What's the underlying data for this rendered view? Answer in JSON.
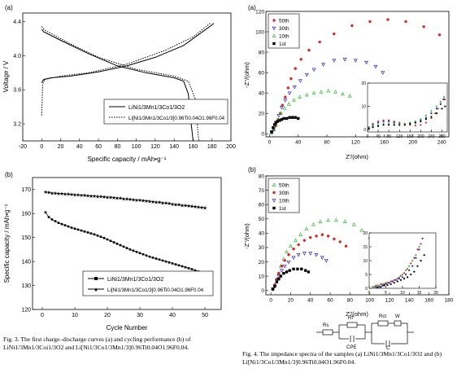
{
  "fig3": {
    "caption": "Fig. 3.  The first charge–discharge curves (a) and cycling performance (b) of LiNi1/3Mn1/3Coi1/3O2 and Li[Ni1/3Co1/3Mn1/3]0.96Ti0.04O1.96F0.04."
  },
  "fig4": {
    "caption": "Fig. 4.  The impedance spectra of the samples (a) LiNi1/3Mn1/3Co1/3O2 and (b) Li[Ni1/3Co1/3Mn1/3]0.96Ti0.04O1.96F0.04.",
    "circuit": {
      "labels": [
        "Rs",
        "Rf",
        "Rct",
        "W",
        "CPE",
        "C"
      ]
    }
  },
  "chart_data": [
    {
      "panel": "(a)",
      "type": "line",
      "xlabel": "Specific capacity / mAh•g⁻¹",
      "ylabel": "Voltage / V",
      "xlim": [
        -20,
        200
      ],
      "ylim": [
        3.0,
        4.5
      ],
      "xticks": [
        "-20",
        "0",
        "20",
        "40",
        "60",
        "80",
        "100",
        "120",
        "140",
        "160",
        "180",
        "200"
      ],
      "yticks": [
        "3.2",
        "3.6",
        "4.0",
        "4.4"
      ],
      "legend_placement": "bottom-right",
      "series": [
        {
          "name": "LiNi1/3Mn1/3Co1/3O2",
          "style": "solid",
          "charge": [
            [
              0,
              3.68
            ],
            [
              2,
              3.72
            ],
            [
              10,
              3.74
            ],
            [
              30,
              3.76
            ],
            [
              60,
              3.81
            ],
            [
              90,
              3.88
            ],
            [
              120,
              3.98
            ],
            [
              150,
              4.12
            ],
            [
              175,
              4.32
            ],
            [
              182,
              4.38
            ]
          ],
          "discharge": [
            [
              0,
              4.31
            ],
            [
              2,
              4.28
            ],
            [
              20,
              4.18
            ],
            [
              50,
              4.02
            ],
            [
              80,
              3.88
            ],
            [
              110,
              3.8
            ],
            [
              140,
              3.74
            ],
            [
              150,
              3.7
            ],
            [
              155,
              3.55
            ],
            [
              158,
              3.2
            ],
            [
              160,
              2.65
            ]
          ]
        },
        {
          "name": "Li[Ni1/3Mn1/3Co1/3]0.96Ti0.04O1.96F0.04",
          "style": "dotted",
          "charge": [
            [
              0,
              3.3
            ],
            [
              1,
              3.66
            ],
            [
              3,
              3.72
            ],
            [
              20,
              3.76
            ],
            [
              50,
              3.8
            ],
            [
              90,
              3.9
            ],
            [
              130,
              4.06
            ],
            [
              160,
              4.22
            ],
            [
              178,
              4.38
            ]
          ],
          "discharge": [
            [
              0,
              4.34
            ],
            [
              3,
              4.3
            ],
            [
              30,
              4.14
            ],
            [
              60,
              3.98
            ],
            [
              100,
              3.84
            ],
            [
              140,
              3.76
            ],
            [
              155,
              3.7
            ],
            [
              162,
              3.5
            ],
            [
              166,
              3.0
            ],
            [
              168,
              2.65
            ]
          ]
        }
      ]
    },
    {
      "panel": "(b)",
      "type": "line",
      "xlabel": "Cycle Number",
      "ylabel": "Specific capacity / mAh•g⁻¹",
      "xlim": [
        -3,
        55
      ],
      "ylim": [
        120,
        175
      ],
      "xticks": [
        "0",
        "10",
        "20",
        "30",
        "40",
        "50"
      ],
      "yticks": [
        "120",
        "130",
        "140",
        "150",
        "160",
        "170"
      ],
      "legend_placement": "bottom-center",
      "series": [
        {
          "name": "LiNi1/3Mn1/3Co1/3O2",
          "marker": "square",
          "values": [
            160.5,
            158.5,
            157.5,
            156.8,
            156.1,
            155.6,
            155.1,
            154.6,
            154.1,
            153.7,
            153.3,
            152.9,
            152.5,
            152.1,
            151.7,
            151.3,
            150.8,
            150.3,
            149.8,
            149.2,
            148.6,
            148.0,
            147.4,
            146.8,
            146.2,
            145.6,
            145.0,
            144.5,
            144.0,
            143.5,
            143.0,
            142.5,
            142.0,
            141.6,
            141.2,
            140.8,
            140.4,
            140.0,
            139.6,
            139.2,
            138.8,
            138.4,
            138.0,
            137.6,
            137.2,
            136.8,
            136.3,
            135.8,
            135.3,
            134.8
          ]
        },
        {
          "name": "Li[Ni1/3Mn1/3Co1/3]0.96Ti0.04O1.96F0.04",
          "marker": "star",
          "values": [
            169.0,
            168.8,
            168.6,
            168.5,
            168.4,
            168.3,
            168.2,
            168.1,
            168.0,
            167.9,
            167.8,
            167.7,
            167.6,
            167.5,
            167.4,
            167.3,
            167.2,
            167.1,
            167.0,
            166.9,
            166.8,
            166.6,
            166.5,
            166.4,
            166.2,
            166.1,
            166.0,
            165.8,
            165.7,
            165.6,
            165.4,
            165.3,
            165.2,
            165.0,
            164.8,
            164.7,
            164.5,
            164.4,
            164.2,
            164.0,
            163.8,
            163.7,
            163.5,
            163.4,
            163.2,
            163.0,
            162.9,
            162.7,
            162.6,
            162.4
          ]
        }
      ]
    },
    {
      "panel": "(a)",
      "type": "scatter",
      "xlabel": "Z'/(ohm)",
      "ylabel": "-Z''/(ohm)",
      "xlim": [
        -5,
        250
      ],
      "ylim": [
        -3,
        120
      ],
      "xticks": [
        "0",
        "40",
        "80",
        "120",
        "160",
        "200",
        "240"
      ],
      "yticks": [
        "0",
        "20",
        "40",
        "60",
        "80",
        "100",
        "120"
      ],
      "legend_placement": "top-left",
      "series": [
        {
          "name": "50th",
          "color": "#e8221f",
          "marker": "circle",
          "x": [
            3,
            6,
            9,
            12,
            15,
            18,
            22,
            26,
            30,
            36,
            44,
            55,
            70,
            90,
            115,
            140,
            165,
            190,
            215,
            237
          ],
          "y": [
            1,
            4,
            8,
            14,
            20,
            28,
            36,
            45,
            54,
            64,
            73,
            82,
            90,
            98,
            106,
            110,
            112,
            110,
            105,
            97
          ]
        },
        {
          "name": "30th",
          "color": "#2323dd",
          "marker": "triangle-down",
          "x": [
            3,
            6,
            9,
            13,
            17,
            22,
            28,
            35,
            43,
            52,
            62,
            75,
            90,
            105,
            120,
            135,
            148,
            158
          ],
          "y": [
            1,
            5,
            11,
            18,
            26,
            33,
            40,
            46,
            52,
            58,
            63,
            68,
            72,
            73,
            72,
            70,
            66,
            60
          ]
        },
        {
          "name": "10th",
          "color": "#2fbf2f",
          "marker": "triangle-up",
          "x": [
            3,
            6,
            9,
            12,
            16,
            21,
            27,
            34,
            42,
            52,
            62,
            72,
            82,
            92,
            102,
            112
          ],
          "y": [
            1,
            4,
            9,
            14,
            20,
            25,
            29,
            33,
            36,
            38,
            40,
            41,
            42,
            41,
            39,
            37
          ]
        },
        {
          "name": "1st",
          "color": "#000000",
          "marker": "square",
          "x": [
            3,
            5,
            7,
            9,
            11,
            14,
            17,
            20,
            24,
            28,
            32,
            36,
            40
          ],
          "y": [
            2,
            6,
            9,
            11,
            12,
            13,
            14,
            15,
            15,
            16,
            16,
            16,
            15
          ]
        }
      ],
      "inset": {
        "xlim": [
          0,
          300
        ],
        "ylim": [
          -1,
          20
        ],
        "xticks": [
          "0",
          "40",
          "80",
          "120",
          "160",
          "200",
          "240",
          "280"
        ],
        "yticks": [
          "0",
          "10",
          "20"
        ],
        "series": [
          {
            "name": "50th",
            "x": [
              5,
              20,
              40,
              60,
              80,
              100,
              120,
              140,
              160,
              180,
              200,
              220,
              240,
              255,
              265,
              275,
              285
            ],
            "y": [
              1,
              2.5,
              3.5,
              4,
              4,
              3.5,
              3,
              2.5,
              2,
              1.8,
              2,
              3,
              5,
              7,
              9,
              11,
              13
            ]
          },
          {
            "name": "30th",
            "x": [
              5,
              20,
              40,
              60,
              80,
              100,
              120,
              140,
              160,
              180,
              200,
              220,
              240,
              260,
              275,
              290
            ],
            "y": [
              1,
              2,
              3,
              3.5,
              3.5,
              3,
              2.5,
              2.5,
              2.5,
              3,
              4,
              5,
              7,
              9,
              11,
              13
            ]
          },
          {
            "name": "10th",
            "x": [
              5,
              20,
              40,
              60,
              80,
              100,
              120,
              140,
              160,
              180,
              200,
              220,
              240,
              260,
              275,
              288
            ],
            "y": [
              1,
              1.5,
              2,
              2.5,
              2.5,
              2.5,
              2.5,
              2.5,
              3,
              3.5,
              4.5,
              6,
              8,
              10,
              12,
              14
            ]
          },
          {
            "name": "1st",
            "x": [
              5,
              20,
              40,
              60,
              80,
              100,
              120,
              140,
              160,
              180,
              200,
              220,
              240,
              260,
              280,
              292
            ],
            "y": [
              0.5,
              1,
              1.5,
              2,
              2,
              2,
              2,
              2,
              2.5,
              3,
              3.5,
              4.5,
              5.5,
              7,
              9,
              10
            ]
          }
        ]
      }
    },
    {
      "panel": "(b)",
      "type": "scatter",
      "xlabel": "Z'/(ohm)",
      "ylabel": "-Z''/(ohm)",
      "xlim": [
        -5,
        180
      ],
      "ylim": [
        -3,
        80
      ],
      "xticks": [
        "0",
        "20",
        "40",
        "60",
        "80",
        "100",
        "120",
        "140",
        "160",
        "180"
      ],
      "yticks": [
        "0",
        "10",
        "20",
        "30",
        "40",
        "50",
        "60",
        "70",
        "80"
      ],
      "legend_placement": "top-left",
      "series": [
        {
          "name": "50th",
          "color": "#2fbf2f",
          "marker": "triangle-up",
          "x": [
            2,
            4,
            6,
            8,
            10,
            13,
            16,
            20,
            25,
            30,
            36,
            43,
            50,
            58,
            66,
            75,
            84,
            92,
            100,
            108
          ],
          "y": [
            1,
            4,
            8,
            12,
            17,
            22,
            27,
            31,
            35,
            39,
            43,
            46,
            48,
            49,
            49,
            48,
            46,
            42,
            37,
            31
          ]
        },
        {
          "name": "30th",
          "color": "#e8221f",
          "marker": "circle",
          "x": [
            2,
            4,
            6,
            8,
            11,
            14,
            18,
            23,
            28,
            34,
            40,
            46,
            52,
            58,
            64,
            70,
            76
          ],
          "y": [
            1,
            4,
            8,
            12,
            17,
            21,
            25,
            29,
            32,
            35,
            37,
            38,
            39,
            38,
            36,
            34,
            31
          ]
        },
        {
          "name": "10th",
          "color": "#2323dd",
          "marker": "triangle-down",
          "x": [
            2,
            4,
            6,
            8,
            11,
            14,
            18,
            23,
            28,
            34,
            40,
            46,
            52,
            56
          ],
          "y": [
            1,
            3,
            7,
            10,
            14,
            17,
            20,
            23,
            25,
            26,
            26,
            25,
            23,
            21
          ]
        },
        {
          "name": "1st",
          "color": "#000000",
          "marker": "square",
          "x": [
            2,
            4,
            6,
            8,
            10,
            13,
            16,
            19,
            23,
            27,
            31,
            35,
            38
          ],
          "y": [
            1,
            3,
            6,
            8,
            10,
            12,
            13,
            14,
            15,
            15,
            15,
            14,
            13
          ]
        }
      ],
      "inset": {
        "xlim": [
          0,
          20
        ],
        "ylim": [
          0,
          20
        ],
        "xticks": [
          "0",
          "5",
          "10",
          "15",
          "20"
        ],
        "yticks": [
          "0",
          "5",
          "10",
          "15",
          "20"
        ],
        "series": [
          {
            "name": "50th",
            "x": [
              1,
              2,
              3,
              4,
              5,
              6,
              7,
              8,
              9,
              10,
              11,
              12,
              13,
              14,
              15
            ],
            "y": [
              0.5,
              1,
              1,
              1.5,
              2,
              2,
              2.5,
              3,
              4,
              5,
              6.5,
              8,
              10,
              12,
              15
            ]
          },
          {
            "name": "30th",
            "x": [
              1.5,
              2.5,
              3.5,
              4.5,
              5.5,
              6.5,
              7.5,
              8.5,
              9.5,
              10.5,
              11.5,
              12.5,
              13.5,
              14.5,
              15.5
            ],
            "y": [
              0.5,
              1,
              1.5,
              1.5,
              2,
              2.5,
              3,
              3.5,
              4.5,
              5.5,
              7,
              9,
              11,
              14,
              16
            ]
          },
          {
            "name": "10th",
            "x": [
              2,
              3,
              4,
              5,
              6,
              7,
              8,
              9,
              10,
              11,
              12,
              13,
              14,
              15,
              16
            ],
            "y": [
              0.5,
              0.5,
              1,
              1.5,
              2,
              2.5,
              3,
              3.5,
              4,
              5,
              6.5,
              8,
              11,
              14,
              18
            ]
          },
          {
            "name": "1st",
            "x": [
              2.5,
              3.5,
              4.5,
              5.5,
              6.5,
              7.5,
              8.5,
              9.5,
              10.5,
              11.5,
              12.5,
              13.5,
              14.5,
              15.5,
              16.5
            ],
            "y": [
              0.3,
              0.5,
              1,
              1.2,
              1.5,
              2,
              2.5,
              3,
              3.5,
              4,
              5,
              6,
              8,
              10,
              12
            ]
          }
        ]
      }
    }
  ]
}
